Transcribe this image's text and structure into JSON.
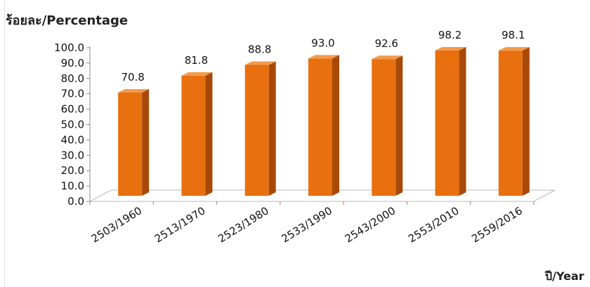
{
  "chart_data": {
    "type": "bar",
    "ylabel": "ร้อยละ/Percentage",
    "xlabel": "ปี/Year",
    "categories": [
      "2503/1960",
      "2513/1970",
      "2523/1980",
      "2533/1990",
      "2543/2000",
      "2553/2010",
      "2559/2016"
    ],
    "values": [
      70.8,
      81.8,
      88.8,
      93.0,
      92.6,
      98.2,
      98.1
    ],
    "value_labels": [
      "70.8",
      "81.8",
      "88.8",
      "93.0",
      "92.6",
      "98.2",
      "98.1"
    ],
    "yticks": [
      "0.0",
      "10.0",
      "20.0",
      "30.0",
      "40.0",
      "50.0",
      "60.0",
      "70.0",
      "80.0",
      "90.0",
      "100.0"
    ],
    "ylim": [
      0,
      100
    ],
    "grid": false,
    "legend": "none",
    "colors": {
      "bar_front": "#E8700F",
      "bar_side": "#A8490A",
      "bar_top": "#F29A4B",
      "axis": "#8c8c8c"
    }
  }
}
